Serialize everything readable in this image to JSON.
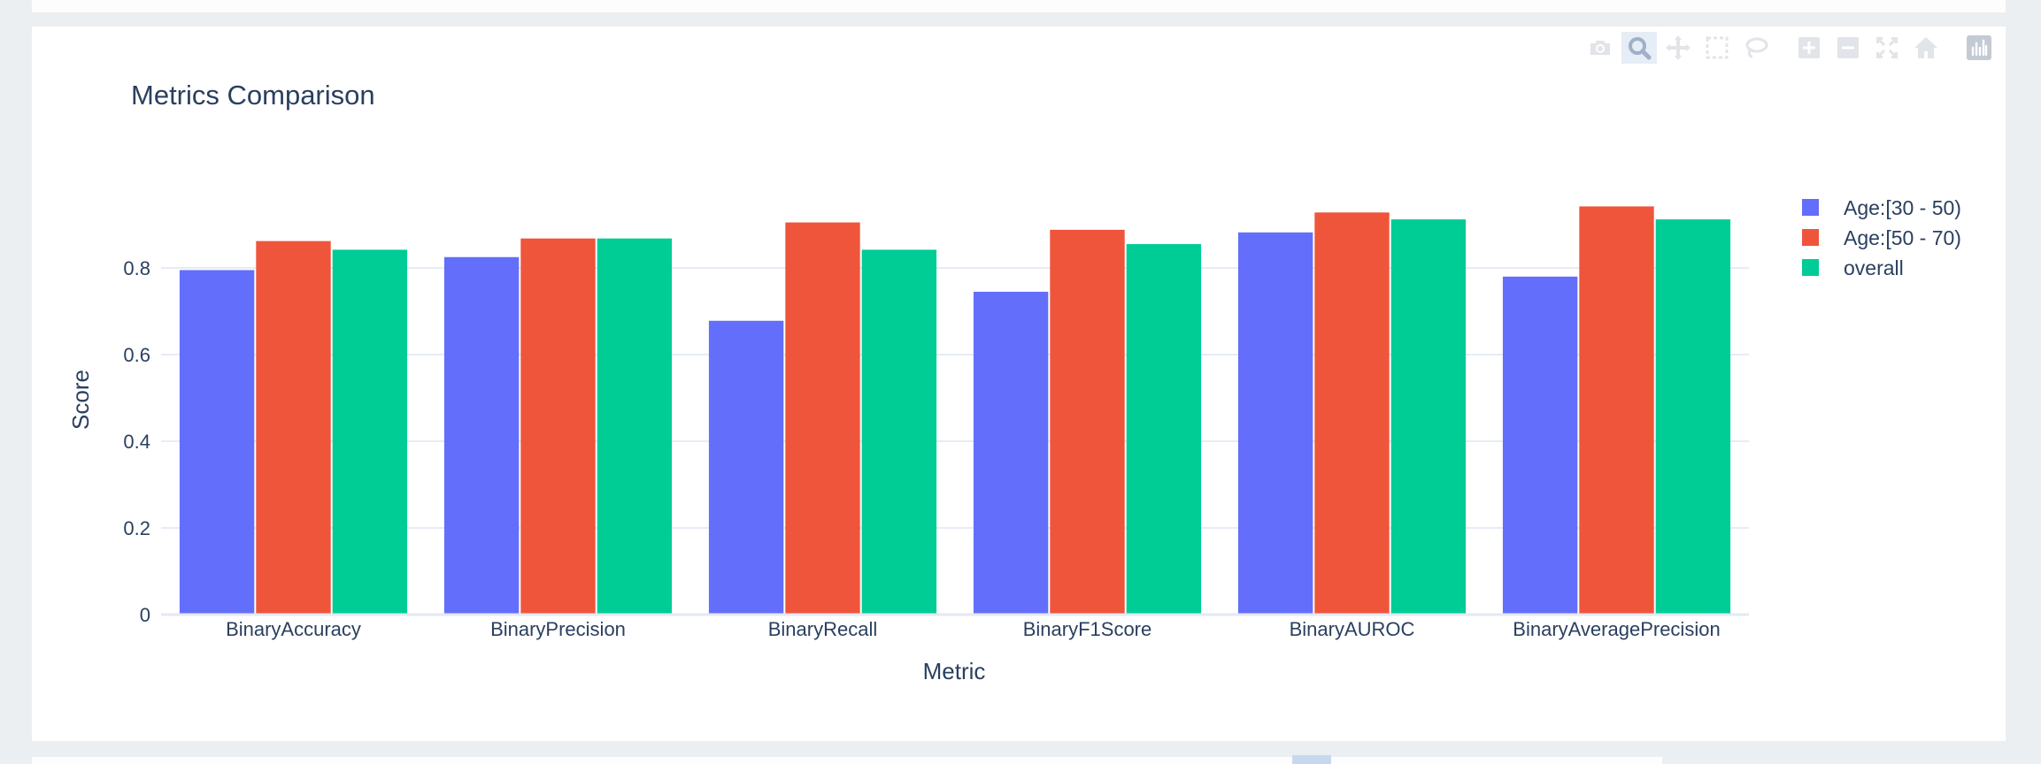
{
  "modebar": {
    "icons": [
      "camera-icon",
      "zoom-icon",
      "pan-icon",
      "box-select-icon",
      "lasso-icon",
      "zoom-in-icon",
      "zoom-out-icon",
      "autoscale-icon",
      "home-icon",
      "plotly-logo-icon"
    ],
    "active": "zoom-icon"
  },
  "colors": {
    "series": [
      "#636efa",
      "#ef553b",
      "#00cc96"
    ],
    "grid": "#dfe6f2",
    "text": "#2a3f5f",
    "title": "#2a3f5f"
  },
  "chart_data": {
    "type": "bar",
    "title": "Metrics Comparison",
    "xlabel": "Metric",
    "ylabel": "Score",
    "ylim": [
      0,
      1.0
    ],
    "yticks": [
      0,
      0.2,
      0.4,
      0.6,
      0.8
    ],
    "ytick_labels": [
      "0",
      "0.2",
      "0.4",
      "0.6",
      "0.8"
    ],
    "grid": true,
    "legend_position": "top-right",
    "categories": [
      "BinaryAccuracy",
      "BinaryPrecision",
      "BinaryRecall",
      "BinaryF1Score",
      "BinaryAUROC",
      "BinaryAveragePrecision"
    ],
    "series": [
      {
        "name": "Age:[30 - 50)",
        "values": [
          0.795,
          0.825,
          0.678,
          0.745,
          0.882,
          0.78
        ]
      },
      {
        "name": "Age:[50 - 70)",
        "values": [
          0.862,
          0.868,
          0.905,
          0.888,
          0.928,
          0.942
        ]
      },
      {
        "name": "overall",
        "values": [
          0.842,
          0.868,
          0.842,
          0.855,
          0.912,
          0.912
        ]
      }
    ]
  }
}
